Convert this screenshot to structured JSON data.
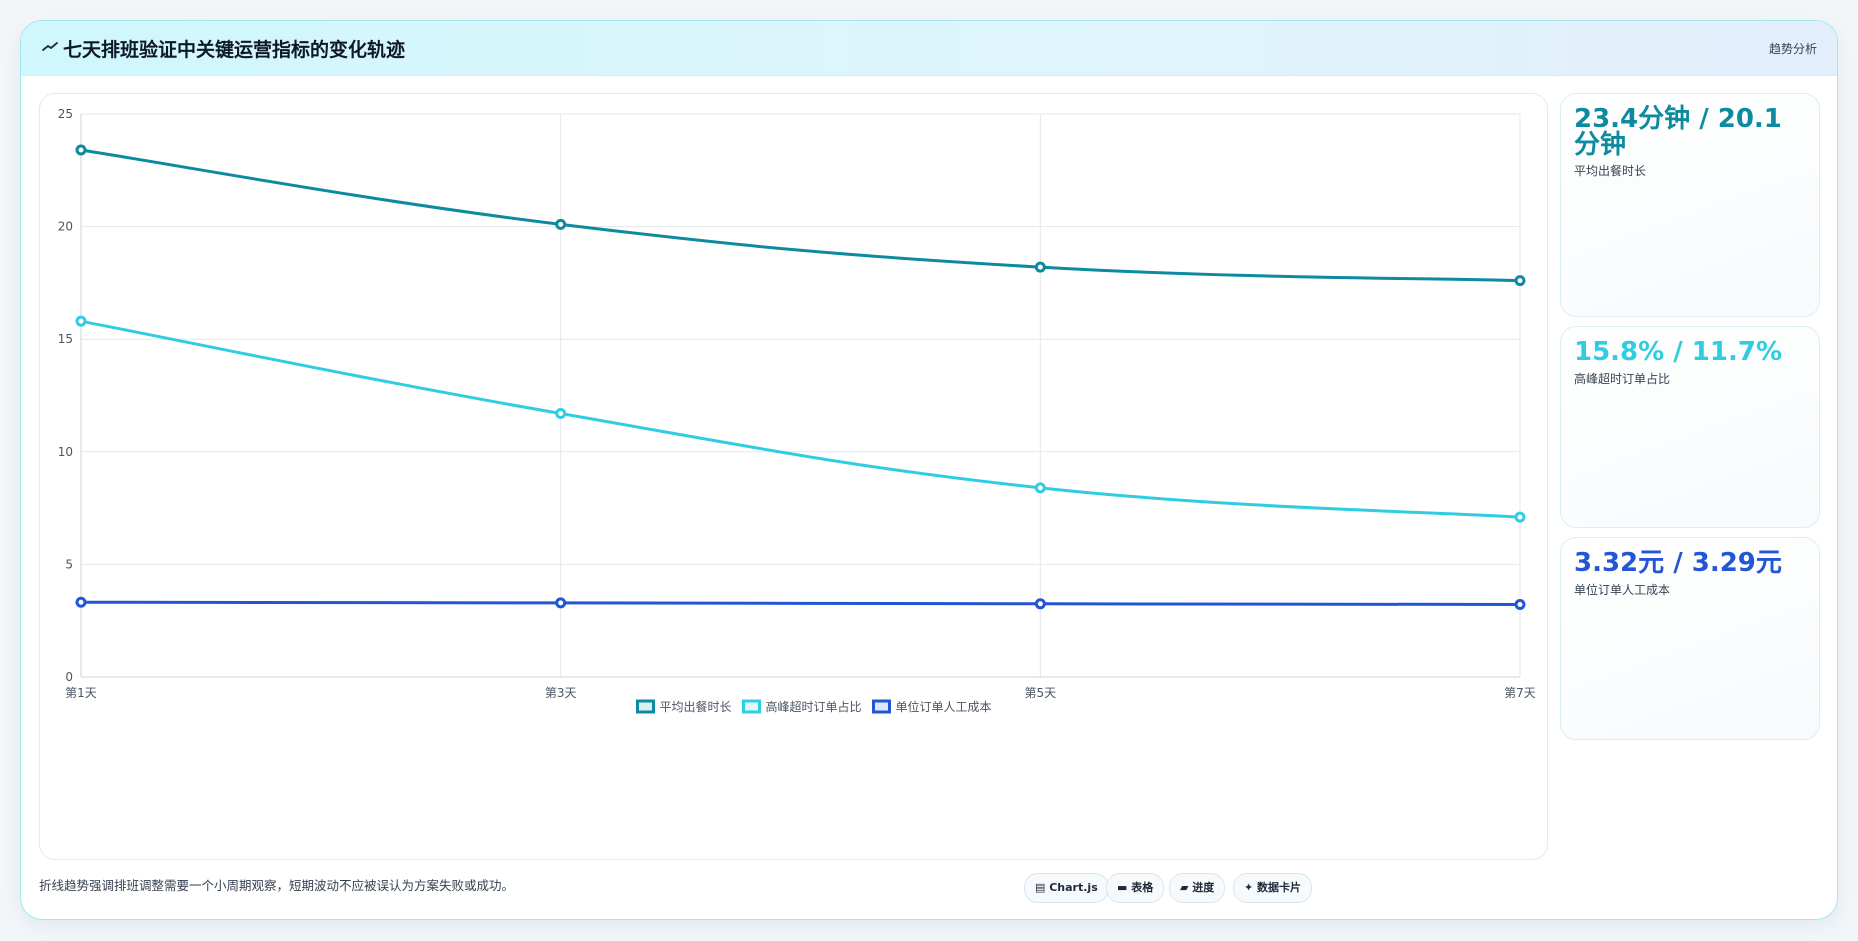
{
  "header": {
    "title": "七天排班验证中关键运营指标的变化轨迹",
    "badge": "趋势分析"
  },
  "chart_data": {
    "type": "line",
    "categories": [
      "第1天",
      "第3天",
      "第5天",
      "第7天"
    ],
    "ylim": [
      0,
      25
    ],
    "yticks": [
      0,
      5,
      10,
      15,
      20,
      25
    ],
    "grid": true,
    "legend_position": "bottom",
    "series": [
      {
        "name": "平均出餐时长",
        "values": [
          23.4,
          20.1,
          18.2,
          17.6
        ],
        "color": "#0e8aa0"
      },
      {
        "name": "高峰超时订单占比",
        "values": [
          15.8,
          11.7,
          8.4,
          7.1
        ],
        "color": "#30cde2"
      },
      {
        "name": "单位订单人工成本",
        "values": [
          3.32,
          3.29,
          3.25,
          3.22
        ],
        "color": "#2356d4"
      }
    ]
  },
  "cards": [
    {
      "value": "23.4分钟 / 20.1分钟",
      "label": "平均出餐时长",
      "color": "#0e8aa0"
    },
    {
      "value": "15.8% / 11.7%",
      "label": "高峰超时订单占比",
      "color": "#30cde2"
    },
    {
      "value": "3.32元 / 3.29元",
      "label": "单位订单人工成本",
      "color": "#2356d4"
    }
  ],
  "footnote": "折线趋势强调排班调整需要一个小周期观察，短期波动不应被误认为方案失败或成功。",
  "tags": [
    "Chart.js",
    "表格",
    "进度",
    "数据卡片"
  ]
}
